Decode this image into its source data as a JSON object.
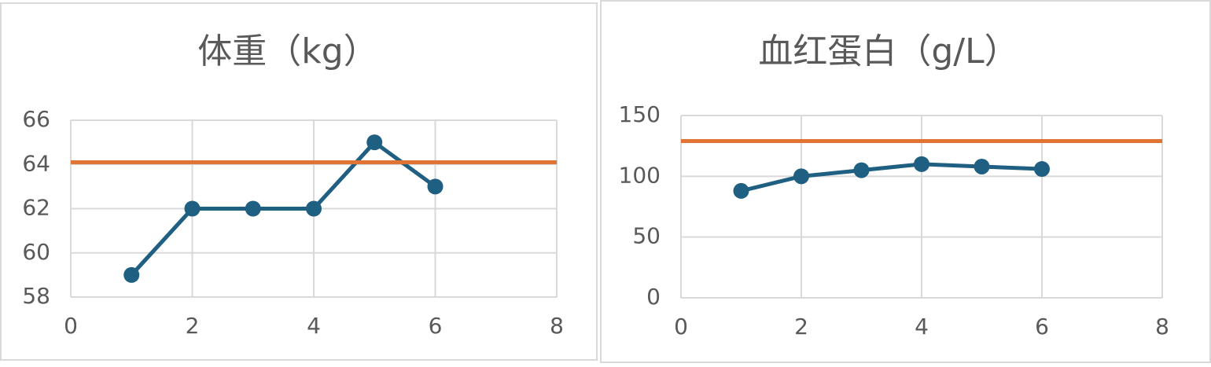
{
  "chart_data": [
    {
      "type": "line",
      "title": "体重（kg）",
      "xlim": [
        0,
        8
      ],
      "xticks": [
        0,
        2,
        4,
        6,
        8
      ],
      "ylim": [
        58,
        66
      ],
      "yticks": [
        58,
        60,
        62,
        64,
        66
      ],
      "grid": true,
      "series": [
        {
          "color": "#1f5f82",
          "marker": "circle",
          "x": [
            1,
            2,
            3,
            4,
            5,
            6
          ],
          "values": [
            59,
            62,
            62,
            62,
            65,
            63
          ]
        },
        {
          "color": "#e07434",
          "marker": "none",
          "x": [
            0,
            8
          ],
          "values": [
            64.1,
            64.1
          ]
        }
      ]
    },
    {
      "type": "line",
      "title": "血红蛋白（g/L）",
      "xlim": [
        0,
        8
      ],
      "xticks": [
        0,
        2,
        4,
        6,
        8
      ],
      "ylim": [
        0,
        150
      ],
      "yticks": [
        0,
        50,
        100,
        150
      ],
      "grid": true,
      "series": [
        {
          "color": "#1f5f82",
          "marker": "circle",
          "x": [
            1,
            2,
            3,
            4,
            5,
            6
          ],
          "values": [
            88,
            100,
            105,
            110,
            108,
            106
          ]
        },
        {
          "color": "#e07434",
          "marker": "none",
          "x": [
            0,
            8
          ],
          "values": [
            129,
            129
          ]
        }
      ]
    }
  ]
}
